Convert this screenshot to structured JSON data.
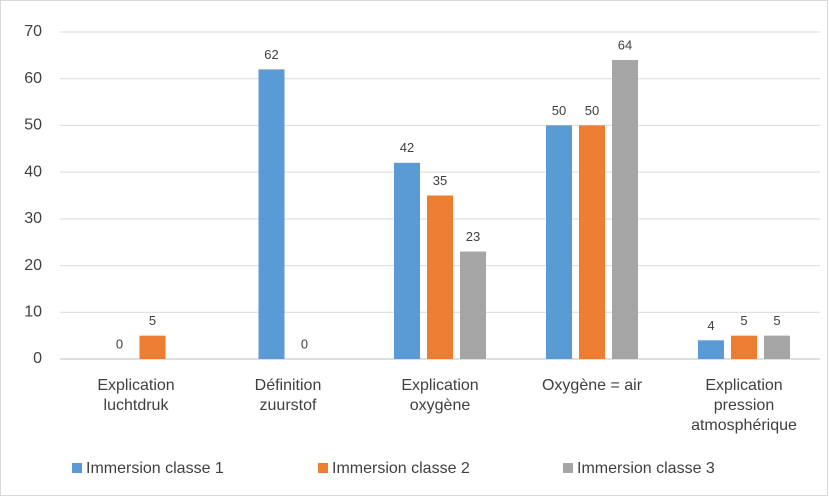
{
  "chart_data": {
    "type": "bar",
    "categories": [
      "Explication\nluchtdruk",
      "Définition\nzuurstof",
      "Explication\noxygène",
      "Oxygène = air",
      "Explication\npression\natmosphérique"
    ],
    "series": [
      {
        "name": "Immersion classe 1",
        "color": "#5b9bd5",
        "values": [
          0,
          62,
          42,
          50,
          4
        ]
      },
      {
        "name": "Immersion classe 2",
        "color": "#ed7d31",
        "values": [
          5,
          0,
          35,
          50,
          5
        ]
      },
      {
        "name": "Immersion classe 3",
        "color": "#a5a5a5",
        "values": [
          null,
          null,
          23,
          64,
          5
        ]
      }
    ],
    "ylim": [
      0,
      70
    ],
    "yticks": [
      0,
      10,
      20,
      30,
      40,
      50,
      60,
      70
    ],
    "grid": true,
    "legend": "bottom"
  }
}
